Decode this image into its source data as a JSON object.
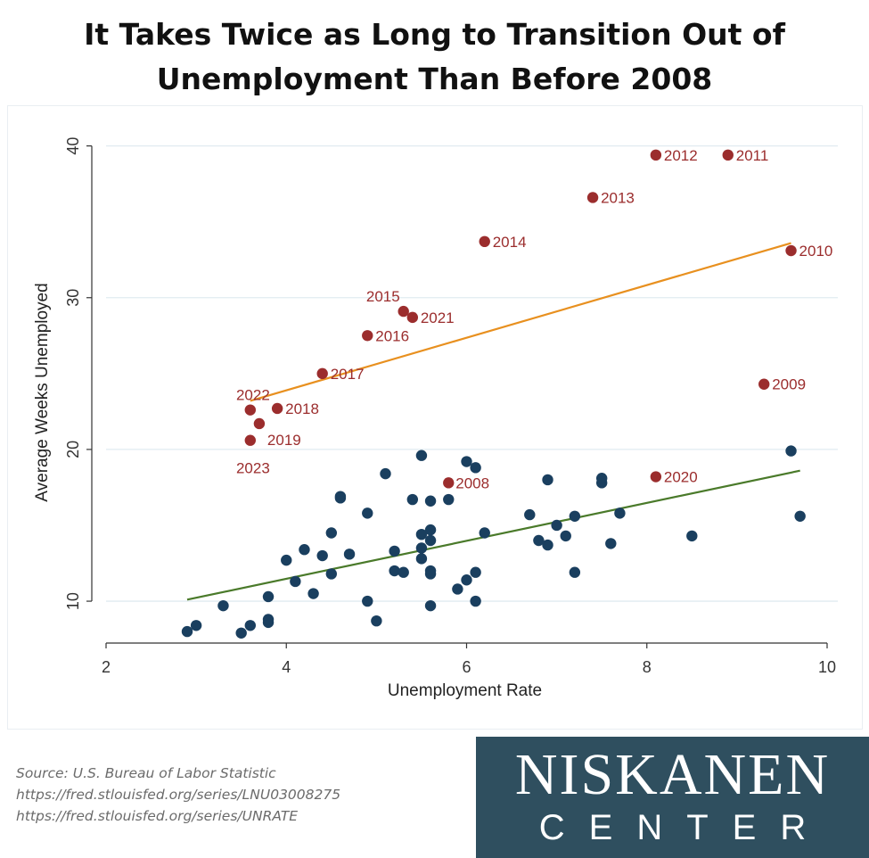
{
  "title_line1": "It Takes Twice as Long to Transition Out of",
  "title_line2": "Unemployment Than Before 2008",
  "source": {
    "line1": "Source: U.S. Bureau of Labor Statistic",
    "line2": "https://fred.stlouisfed.org/series/LNU03008275",
    "line3": "https://fred.stlouisfed.org/series/UNRATE"
  },
  "logo": {
    "top": "NISKANEN",
    "bottom": "CENTER",
    "background": "#2f4f5f"
  },
  "colors": {
    "pre_2008": "#1a3f5f",
    "post_2008": "#9b2d2d",
    "label": "#9b2d2d",
    "fit_post": "#e8901f",
    "fit_pre": "#4a7a2a",
    "grid": "#e1ebf0",
    "axis": "#333333"
  },
  "chart_data": {
    "type": "scatter",
    "title": "It Takes Twice as Long to Transition Out of Unemployment Than Before 2008",
    "xlabel": "Unemployment Rate",
    "ylabel": "Average Weeks Unemployed",
    "xlim": [
      2,
      10
    ],
    "ylim": [
      7.3,
      40.8
    ],
    "xticks": [
      2,
      4,
      6,
      8,
      10
    ],
    "yticks": [
      10,
      20,
      30,
      40
    ],
    "grid": "horizontal",
    "legend": "none",
    "series": [
      {
        "points": [
          [
            2.9,
            8.0
          ],
          [
            3.0,
            8.4
          ],
          [
            3.3,
            9.7
          ],
          [
            3.5,
            7.9
          ],
          [
            3.6,
            8.4
          ],
          [
            3.8,
            8.6
          ],
          [
            3.8,
            8.8
          ],
          [
            3.8,
            10.3
          ],
          [
            4.0,
            12.7
          ],
          [
            4.1,
            11.3
          ],
          [
            4.2,
            13.4
          ],
          [
            4.3,
            10.5
          ],
          [
            4.4,
            13.0
          ],
          [
            4.5,
            11.8
          ],
          [
            4.5,
            14.5
          ],
          [
            4.6,
            16.8
          ],
          [
            4.6,
            16.9
          ],
          [
            4.7,
            13.1
          ],
          [
            4.9,
            10.0
          ],
          [
            4.9,
            15.8
          ],
          [
            5.0,
            8.7
          ],
          [
            5.1,
            18.4
          ],
          [
            5.2,
            12.0
          ],
          [
            5.2,
            13.3
          ],
          [
            5.3,
            11.9
          ],
          [
            5.4,
            16.7
          ],
          [
            5.5,
            12.8
          ],
          [
            5.5,
            13.5
          ],
          [
            5.5,
            14.4
          ],
          [
            5.5,
            19.6
          ],
          [
            5.6,
            9.7
          ],
          [
            5.6,
            11.8
          ],
          [
            5.6,
            12.0
          ],
          [
            5.6,
            14.0
          ],
          [
            5.6,
            14.7
          ],
          [
            5.6,
            16.6
          ],
          [
            5.8,
            16.7
          ],
          [
            5.9,
            10.8
          ],
          [
            6.0,
            11.4
          ],
          [
            6.0,
            19.2
          ],
          [
            6.1,
            10.0
          ],
          [
            6.1,
            11.9
          ],
          [
            6.1,
            18.8
          ],
          [
            6.2,
            14.5
          ],
          [
            6.7,
            15.7
          ],
          [
            6.8,
            14.0
          ],
          [
            6.9,
            13.7
          ],
          [
            6.9,
            18.0
          ],
          [
            7.0,
            15.0
          ],
          [
            7.1,
            14.3
          ],
          [
            7.2,
            11.9
          ],
          [
            7.2,
            15.6
          ],
          [
            7.5,
            17.8
          ],
          [
            7.5,
            18.1
          ],
          [
            7.6,
            13.8
          ],
          [
            7.7,
            15.8
          ],
          [
            8.5,
            14.3
          ],
          [
            9.6,
            19.9
          ],
          [
            9.7,
            15.6
          ]
        ]
      },
      {
        "points": [
          {
            "x": 5.8,
            "y": 17.8,
            "label": "2008"
          },
          {
            "x": 9.3,
            "y": 24.3,
            "label": "2009"
          },
          {
            "x": 9.6,
            "y": 33.1,
            "label": "2010"
          },
          {
            "x": 8.9,
            "y": 39.4,
            "label": "2011"
          },
          {
            "x": 8.1,
            "y": 39.4,
            "label": "2012"
          },
          {
            "x": 7.4,
            "y": 36.6,
            "label": "2013"
          },
          {
            "x": 6.2,
            "y": 33.7,
            "label": "2014"
          },
          {
            "x": 5.3,
            "y": 29.1,
            "label": "2015"
          },
          {
            "x": 4.9,
            "y": 27.5,
            "label": "2016"
          },
          {
            "x": 4.4,
            "y": 25.0,
            "label": "2017"
          },
          {
            "x": 3.9,
            "y": 22.7,
            "label": "2018"
          },
          {
            "x": 3.7,
            "y": 21.7,
            "label": "2019"
          },
          {
            "x": 8.1,
            "y": 18.2,
            "label": "2020"
          },
          {
            "x": 5.4,
            "y": 28.7,
            "label": "2021"
          },
          {
            "x": 3.6,
            "y": 22.6,
            "label": "2022"
          },
          {
            "x": 3.6,
            "y": 20.6,
            "label": "2023"
          }
        ]
      }
    ],
    "fit_lines": [
      {
        "x1": 3.6,
        "y1": 23.2,
        "x2": 9.6,
        "y2": 33.6
      },
      {
        "x1": 2.9,
        "y1": 10.1,
        "x2": 9.7,
        "y2": 18.6
      }
    ]
  }
}
